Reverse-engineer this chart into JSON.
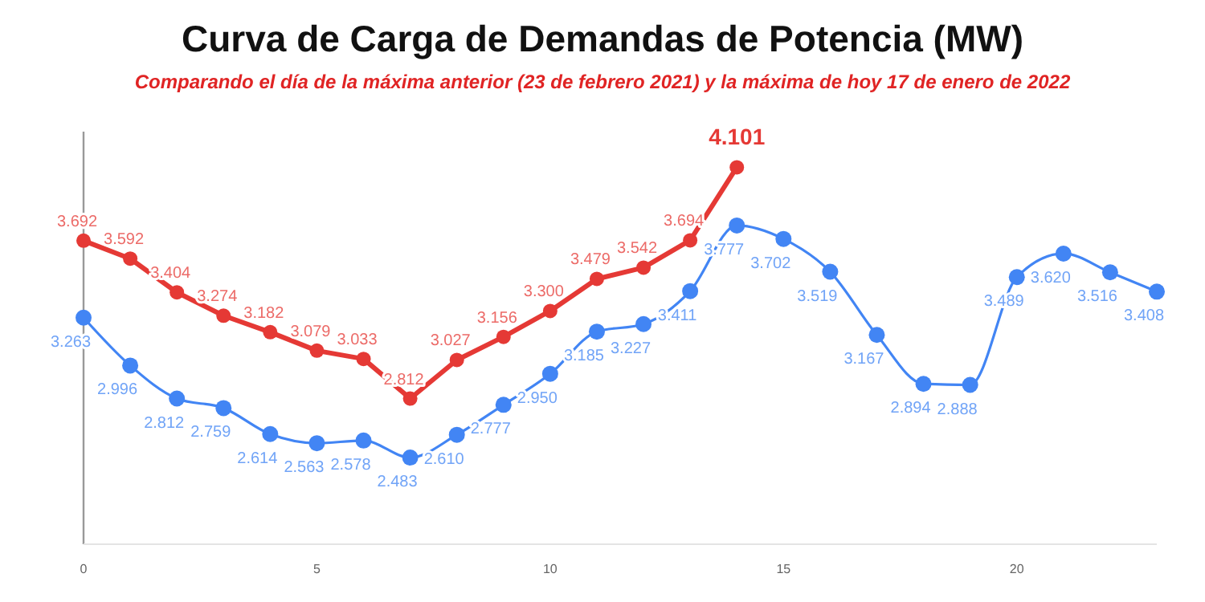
{
  "chart_data": {
    "type": "line",
    "title": "Curva de Carga de Demandas de Potencia (MW)",
    "subtitle": "Comparando el día de la máxima anterior (23 de febrero 2021) y la máxima de hoy 17 de enero de 2022",
    "xlim": [
      0,
      23
    ],
    "xticks": [
      0,
      5,
      10,
      15,
      20
    ],
    "ylim": [
      2000,
      4300
    ],
    "tick_labels": "x",
    "grid": false,
    "marker": "circle",
    "line_style": "solid",
    "series": [
      {
        "color": "#4285f4",
        "x": [
          0,
          1,
          2,
          3,
          4,
          5,
          6,
          7,
          8,
          9,
          10,
          11,
          12,
          13,
          14,
          15,
          16,
          17,
          18,
          19,
          20,
          21,
          22,
          23
        ],
        "values": [
          3263,
          2996,
          2812,
          2759,
          2614,
          2563,
          2578,
          2483,
          2610,
          2777,
          2950,
          3185,
          3227,
          3411,
          3777,
          3702,
          3519,
          3167,
          2894,
          2888,
          3489,
          3620,
          3516,
          3408
        ],
        "value_labels": [
          "3.263",
          "2.996",
          "2.812",
          "2.759",
          "2.614",
          "2.563",
          "2.578",
          "2.483",
          "2.610",
          "2.777",
          "2.950",
          "3.185",
          "3.227",
          "3.411",
          "3.777",
          "3.702",
          "3.519",
          "3.167",
          "2.894",
          "2.888",
          "3.489",
          "3.620",
          "3.516",
          "3.408"
        ]
      },
      {
        "color": "#e53935",
        "x": [
          0,
          1,
          2,
          3,
          4,
          5,
          6,
          7,
          8,
          9,
          10,
          11,
          12,
          13,
          14
        ],
        "values": [
          3692,
          3592,
          3404,
          3274,
          3182,
          3079,
          3033,
          2812,
          3027,
          3156,
          3300,
          3479,
          3542,
          3694,
          4101
        ],
        "value_labels": [
          "3.692",
          "3.592",
          "3.404",
          "3.274",
          "3.182",
          "3.079",
          "3.033",
          "2.812",
          "3.027",
          "3.156",
          "3.300",
          "3.479",
          "3.542",
          "3.694",
          "4.101"
        ]
      }
    ]
  }
}
